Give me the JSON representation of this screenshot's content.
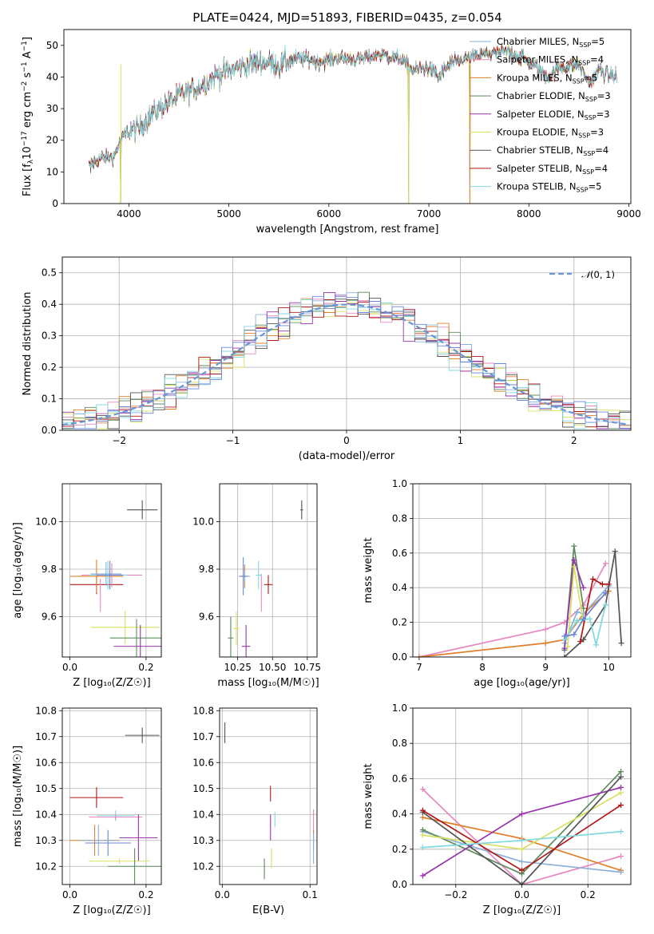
{
  "figure": {
    "title": "PLATE=0424, MJD=51893, FIBERID=0435, z=0.054"
  },
  "colors": {
    "Chabrier MILES": "#8ab0d8",
    "Salpeter MILES": "#e887c0",
    "Kroupa MILES": "#e0802a",
    "Chabrier ELODIE": "#5c8a5c",
    "Salpeter ELODIE": "#9a34b0",
    "Kroupa ELODIE": "#d8e060",
    "Chabrier STELIB": "#555555",
    "Salpeter STELIB": "#b01818",
    "Kroupa STELIB": "#80d8e0",
    "normal": "#6a96d4",
    "blue": "#6a86d8"
  },
  "chart_data": [
    {
      "id": "spectrum",
      "type": "line",
      "title": "PLATE=0424, MJD=51893, FIBERID=0435, z=0.054",
      "xlabel": "wavelength [Angstrom, rest frame]",
      "ylabel_parts": [
        "Flux [f",
        "λ",
        "10",
        "−17",
        " erg cm",
        "−2",
        " s",
        "−1",
        " A",
        "−1",
        "]"
      ],
      "xlim": [
        3350,
        9020
      ],
      "ylim": [
        0,
        55
      ],
      "xticks": [
        "4000",
        "5000",
        "6000",
        "7000",
        "8000",
        "9000"
      ],
      "yticks": [
        "0",
        "10",
        "20",
        "30",
        "40",
        "50"
      ],
      "grid": false,
      "legend": "top-right",
      "legend_entries": [
        {
          "name": "Chabrier MILES",
          "sub": "SSP",
          "n": "5"
        },
        {
          "name": "Salpeter MILES",
          "sub": "SSP",
          "n": "4"
        },
        {
          "name": "Kroupa MILES",
          "sub": "SSP",
          "n": "5"
        },
        {
          "name": "Chabrier ELODIE",
          "sub": "SSP",
          "n": "3"
        },
        {
          "name": "Salpeter ELODIE",
          "sub": "SSP",
          "n": "3"
        },
        {
          "name": "Kroupa ELODIE",
          "sub": "SSP",
          "n": "3"
        },
        {
          "name": "Chabrier STELIB",
          "sub": "SSP",
          "n": "4"
        },
        {
          "name": "Salpeter STELIB",
          "sub": "SSP",
          "n": "4"
        },
        {
          "name": "Kroupa STELIB",
          "sub": "SSP",
          "n": "5"
        }
      ],
      "x_range": [
        3600,
        8880
      ],
      "continuum": [
        [
          3600,
          12
        ],
        [
          3700,
          14
        ],
        [
          3850,
          15
        ],
        [
          3950,
          22
        ],
        [
          4100,
          24
        ],
        [
          4300,
          30
        ],
        [
          4500,
          34
        ],
        [
          4700,
          37
        ],
        [
          4900,
          41
        ],
        [
          5100,
          43
        ],
        [
          5300,
          45
        ],
        [
          5500,
          44
        ],
        [
          5700,
          46
        ],
        [
          5900,
          45
        ],
        [
          6100,
          46
        ],
        [
          6300,
          45.5
        ],
        [
          6500,
          47
        ],
        [
          6700,
          46
        ],
        [
          6850,
          42
        ],
        [
          7000,
          43
        ],
        [
          7100,
          40
        ],
        [
          7200,
          44
        ],
        [
          7400,
          46
        ],
        [
          7600,
          47.5
        ],
        [
          7800,
          48
        ],
        [
          8000,
          45
        ],
        [
          8200,
          40
        ],
        [
          8300,
          43
        ],
        [
          8500,
          44
        ],
        [
          8600,
          38
        ],
        [
          8700,
          42
        ],
        [
          8880,
          40
        ]
      ],
      "spikes": [
        {
          "x": 3920,
          "min": -2
        },
        {
          "x": 6800,
          "min": -2
        },
        {
          "x": 7410,
          "min": -2
        }
      ]
    },
    {
      "id": "residuals",
      "type": "histogram",
      "xlabel": "(data-model)/error",
      "ylabel": "Normed distribution",
      "xlim": [
        -2.5,
        2.5
      ],
      "ylim": [
        0,
        0.55
      ],
      "xticks": [
        "−2",
        "−1",
        "0",
        "1",
        "2"
      ],
      "yticks": [
        "0.0",
        "0.1",
        "0.2",
        "0.3",
        "0.4",
        "0.5"
      ],
      "grid": true,
      "legend": "top-right",
      "legend_label": [
        "𝒩",
        "(0, 1)"
      ],
      "bin_width": 0.1
    },
    {
      "id": "age-vs-Z",
      "type": "errorbar",
      "xlabel": "Z [log₁₀(Z/Z☉)]",
      "ylabel": "age  [log₁₀(age/yr)]",
      "xlim": [
        -0.02,
        0.24
      ],
      "ylim": [
        9.43,
        10.16
      ],
      "xticks": [
        "0.0",
        "0.2"
      ],
      "yticks": [
        "9.6",
        "9.8",
        "10.0"
      ],
      "grid": true,
      "points": [
        {
          "s": "Chabrier STELIB",
          "x": 0.19,
          "y": 10.05,
          "ex": 0.04,
          "ey": 0.04
        },
        {
          "s": "Salpeter STELIB",
          "x": 0.07,
          "y": 9.735,
          "ex": 0.07,
          "ey": 0.04
        },
        {
          "s": "Kroupa MILES",
          "x": 0.07,
          "y": 9.77,
          "ex": 0.07,
          "ey": 0.07
        },
        {
          "s": "Salpeter MILES",
          "x": 0.11,
          "y": 9.775,
          "ex": 0.08,
          "ey": 0.05
        },
        {
          "s": "Chabrier MILES",
          "x": 0.095,
          "y": 9.78,
          "ex": 0.04,
          "ey": 0.05
        },
        {
          "s": "Kroupa STELIB",
          "x": 0.1,
          "y": 9.775,
          "ex": 0.05,
          "ey": 0.06
        },
        {
          "s": "Kroupa ELODIE",
          "x": 0.145,
          "y": 9.555,
          "ex": 0.09,
          "ey": 0.07
        },
        {
          "s": "Chabrier ELODIE",
          "x": 0.175,
          "y": 9.51,
          "ex": 0.07,
          "ey": 0.08
        },
        {
          "s": "Salpeter ELODIE",
          "x": 0.185,
          "y": 9.475,
          "ex": 0.07,
          "ey": 0.09
        },
        {
          "s": "Salpeter MILES",
          "x": 0.08,
          "y": 9.69,
          "ex": 0.0,
          "ey": 0.07
        },
        {
          "s": "blue",
          "x": 0.105,
          "y": 9.775,
          "ex": 0.035,
          "ey": 0.06
        }
      ]
    },
    {
      "id": "age-vs-mass",
      "type": "errorbar",
      "xlabel": "mass [log₁₀(M/M☉)]",
      "ylabel": "",
      "xlim": [
        10.12,
        10.82
      ],
      "ylim": [
        9.43,
        10.16
      ],
      "xticks": [
        "10.25",
        "10.50",
        "10.75"
      ],
      "yticks": [
        "9.6",
        "9.8",
        "10.0"
      ],
      "grid": true,
      "points": [
        {
          "s": "Chabrier STELIB",
          "x": 10.71,
          "y": 10.05,
          "ex": 0.01,
          "ey": 0.04
        },
        {
          "s": "Salpeter STELIB",
          "x": 10.47,
          "y": 9.735,
          "ex": 0.03,
          "ey": 0.04
        },
        {
          "s": "Salpeter MILES",
          "x": 10.42,
          "y": 9.7,
          "ex": 0.0,
          "ey": 0.08
        },
        {
          "s": "Kroupa MILES",
          "x": 10.3,
          "y": 9.77,
          "ex": 0.03,
          "ey": 0.05
        },
        {
          "s": "Kroupa STELIB",
          "x": 10.4,
          "y": 9.775,
          "ex": 0.02,
          "ey": 0.06
        },
        {
          "s": "Chabrier MILES",
          "x": 10.3,
          "y": 9.77,
          "ex": 0.04,
          "ey": 0.02
        },
        {
          "s": "blue",
          "x": 10.29,
          "y": 9.77,
          "ex": 0.03,
          "ey": 0.08
        },
        {
          "s": "Kroupa ELODIE",
          "x": 10.24,
          "y": 9.55,
          "ex": 0.02,
          "ey": 0.07
        },
        {
          "s": "Chabrier ELODIE",
          "x": 10.2,
          "y": 9.51,
          "ex": 0.02,
          "ey": 0.09
        },
        {
          "s": "Salpeter ELODIE",
          "x": 10.31,
          "y": 9.475,
          "ex": 0.03,
          "ey": 0.09
        }
      ]
    },
    {
      "id": "weight-vs-age",
      "type": "line",
      "xlabel": "age  [log₁₀(age/yr)]",
      "ylabel": "mass weight",
      "xlim": [
        6.9,
        10.35
      ],
      "ylim": [
        0,
        1
      ],
      "xticks": [
        "7",
        "8",
        "9",
        "10"
      ],
      "yticks": [
        "0.0",
        "0.2",
        "0.4",
        "0.6",
        "0.8",
        "1.0"
      ],
      "grid": true,
      "series": [
        {
          "s": "Salpeter MILES",
          "x": [
            7.0,
            9.0,
            9.3,
            9.6,
            9.95
          ],
          "y": [
            0.0,
            0.16,
            0.2,
            0.3,
            0.54
          ]
        },
        {
          "s": "Kroupa MILES",
          "x": [
            7.0,
            9.0,
            9.3,
            9.6,
            10.0
          ],
          "y": [
            0.0,
            0.08,
            0.1,
            0.25,
            0.38
          ]
        },
        {
          "s": "Chabrier MILES",
          "x": [
            9.3,
            9.5,
            9.6,
            10.0
          ],
          "y": [
            0.08,
            0.26,
            0.25,
            0.41
          ]
        },
        {
          "s": "Chabrier ELODIE",
          "x": [
            9.3,
            9.45,
            9.6
          ],
          "y": [
            0.04,
            0.64,
            0.28
          ]
        },
        {
          "s": "Salpeter ELODIE",
          "x": [
            9.3,
            9.45,
            9.6
          ],
          "y": [
            0.05,
            0.56,
            0.4
          ]
        },
        {
          "s": "Kroupa ELODIE",
          "x": [
            9.35,
            9.45,
            9.6
          ],
          "y": [
            0.06,
            0.52,
            0.2
          ]
        },
        {
          "s": "Chabrier STELIB",
          "x": [
            9.3,
            9.6,
            9.95,
            10.1,
            10.2
          ],
          "y": [
            0.0,
            0.1,
            0.3,
            0.61,
            0.08
          ]
        },
        {
          "s": "Salpeter STELIB",
          "x": [
            9.55,
            9.75,
            9.9,
            10.0
          ],
          "y": [
            0.09,
            0.45,
            0.42,
            0.42
          ]
        },
        {
          "s": "Kroupa STELIB",
          "x": [
            9.3,
            9.5,
            9.7,
            9.8,
            9.95
          ],
          "y": [
            0.1,
            0.21,
            0.22,
            0.07,
            0.3
          ]
        },
        {
          "s": "blue",
          "x": [
            9.3,
            9.45,
            9.6,
            9.95
          ],
          "y": [
            0.12,
            0.13,
            0.22,
            0.37
          ]
        }
      ]
    },
    {
      "id": "mass-vs-Z",
      "type": "errorbar",
      "xlabel": "Z [log₁₀(Z/Z☉)]",
      "ylabel": "mass [log₁₀(M/M☉)]",
      "xlim": [
        -0.02,
        0.24
      ],
      "ylim": [
        10.13,
        10.81
      ],
      "xticks": [
        "0.0",
        "0.2"
      ],
      "yticks": [
        "10.2",
        "10.3",
        "10.4",
        "10.5",
        "10.6",
        "10.7",
        "10.8"
      ],
      "grid": true,
      "points": [
        {
          "s": "Chabrier STELIB",
          "x": 0.19,
          "y": 10.705,
          "ex": 0.045,
          "ey": 0.03
        },
        {
          "s": "Salpeter STELIB",
          "x": 0.07,
          "y": 10.465,
          "ex": 0.07,
          "ey": 0.04
        },
        {
          "s": "Kroupa STELIB",
          "x": 0.12,
          "y": 10.395,
          "ex": 0.05,
          "ey": 0.02
        },
        {
          "s": "Salpeter MILES",
          "x": 0.12,
          "y": 10.39,
          "ex": 0.07,
          "ey": 0.01
        },
        {
          "s": "Salpeter ELODIE",
          "x": 0.18,
          "y": 10.31,
          "ex": 0.05,
          "ey": 0.09
        },
        {
          "s": "Kroupa MILES",
          "x": 0.065,
          "y": 10.3,
          "ex": 0.065,
          "ey": 0.06
        },
        {
          "s": "blue",
          "x": 0.1,
          "y": 10.29,
          "ex": 0.06,
          "ey": 0.05
        },
        {
          "s": "Chabrier MILES",
          "x": 0.075,
          "y": 10.3,
          "ex": 0.05,
          "ey": 0.06
        },
        {
          "s": "Kroupa ELODIE",
          "x": 0.13,
          "y": 10.22,
          "ex": 0.08,
          "ey": 0.01
        },
        {
          "s": "Chabrier ELODIE",
          "x": 0.17,
          "y": 10.2,
          "ex": 0.07,
          "ey": 0.07
        }
      ]
    },
    {
      "id": "mass-vs-ebv",
      "type": "errorbar",
      "xlabel": "E(B-V)",
      "ylabel": "",
      "xlim": [
        -0.003,
        0.108
      ],
      "ylim": [
        10.13,
        10.81
      ],
      "xticks": [
        "0.0",
        "0.1"
      ],
      "yticks": [
        "10.2",
        "10.3",
        "10.4",
        "10.5",
        "10.6",
        "10.7",
        "10.8"
      ],
      "grid": true,
      "points": [
        {
          "s": "Chabrier STELIB",
          "x": 0.003,
          "y": 10.715,
          "ex": 0,
          "ey": 0.04
        },
        {
          "s": "Salpeter STELIB",
          "x": 0.055,
          "y": 10.48,
          "ex": 0,
          "ey": 0.03
        },
        {
          "s": "Kroupa STELIB",
          "x": 0.06,
          "y": 10.38,
          "ex": 0,
          "ey": 0.03
        },
        {
          "s": "Salpeter ELODIE",
          "x": 0.055,
          "y": 10.35,
          "ex": 0,
          "ey": 0.05
        },
        {
          "s": "Kroupa ELODIE",
          "x": 0.056,
          "y": 10.23,
          "ex": 0,
          "ey": 0.04
        },
        {
          "s": "Chabrier ELODIE",
          "x": 0.048,
          "y": 10.19,
          "ex": 0,
          "ey": 0.04
        },
        {
          "s": "Salpeter MILES",
          "x": 0.104,
          "y": 10.37,
          "ex": 0,
          "ey": 0.05
        },
        {
          "s": "Kroupa MILES",
          "x": 0.104,
          "y": 10.3,
          "ex": 0,
          "ey": 0.04
        },
        {
          "s": "Chabrier MILES",
          "x": 0.104,
          "y": 10.27,
          "ex": 0,
          "ey": 0.06
        }
      ]
    },
    {
      "id": "weight-vs-Z",
      "type": "line",
      "xlabel": "Z [log₁₀(Z/Z☉)]",
      "ylabel": "mass weight",
      "xlim": [
        -0.33,
        0.33
      ],
      "ylim": [
        0,
        1
      ],
      "xticks": [
        "−0.2",
        "0.0",
        "0.2"
      ],
      "yticks": [
        "0.0",
        "0.2",
        "0.4",
        "0.6",
        "0.8",
        "1.0"
      ],
      "grid": true,
      "series": [
        {
          "s": "Salpeter MILES",
          "x": [
            -0.3,
            0.0,
            0.3
          ],
          "y": [
            0.54,
            0.0,
            0.16
          ]
        },
        {
          "s": "Kroupa MILES",
          "x": [
            -0.3,
            0.0,
            0.3
          ],
          "y": [
            0.38,
            0.26,
            0.08
          ]
        },
        {
          "s": "Chabrier MILES",
          "x": [
            -0.3,
            0.0,
            0.3
          ],
          "y": [
            0.3,
            0.13,
            0.07
          ]
        },
        {
          "s": "Chabrier ELODIE",
          "x": [
            -0.3,
            0.0,
            0.3
          ],
          "y": [
            0.31,
            0.06,
            0.64
          ]
        },
        {
          "s": "Salpeter ELODIE",
          "x": [
            -0.3,
            0.0,
            0.3
          ],
          "y": [
            0.05,
            0.4,
            0.55
          ]
        },
        {
          "s": "Kroupa ELODIE",
          "x": [
            -0.3,
            0.0,
            0.3
          ],
          "y": [
            0.28,
            0.2,
            0.52
          ]
        },
        {
          "s": "Chabrier STELIB",
          "x": [
            -0.3,
            0.0,
            0.3
          ],
          "y": [
            0.41,
            0.0,
            0.61
          ]
        },
        {
          "s": "Salpeter STELIB",
          "x": [
            -0.3,
            0.0,
            0.3
          ],
          "y": [
            0.42,
            0.08,
            0.45
          ]
        },
        {
          "s": "Kroupa STELIB",
          "x": [
            -0.3,
            0.0,
            0.3
          ],
          "y": [
            0.21,
            0.25,
            0.3
          ]
        }
      ]
    }
  ]
}
